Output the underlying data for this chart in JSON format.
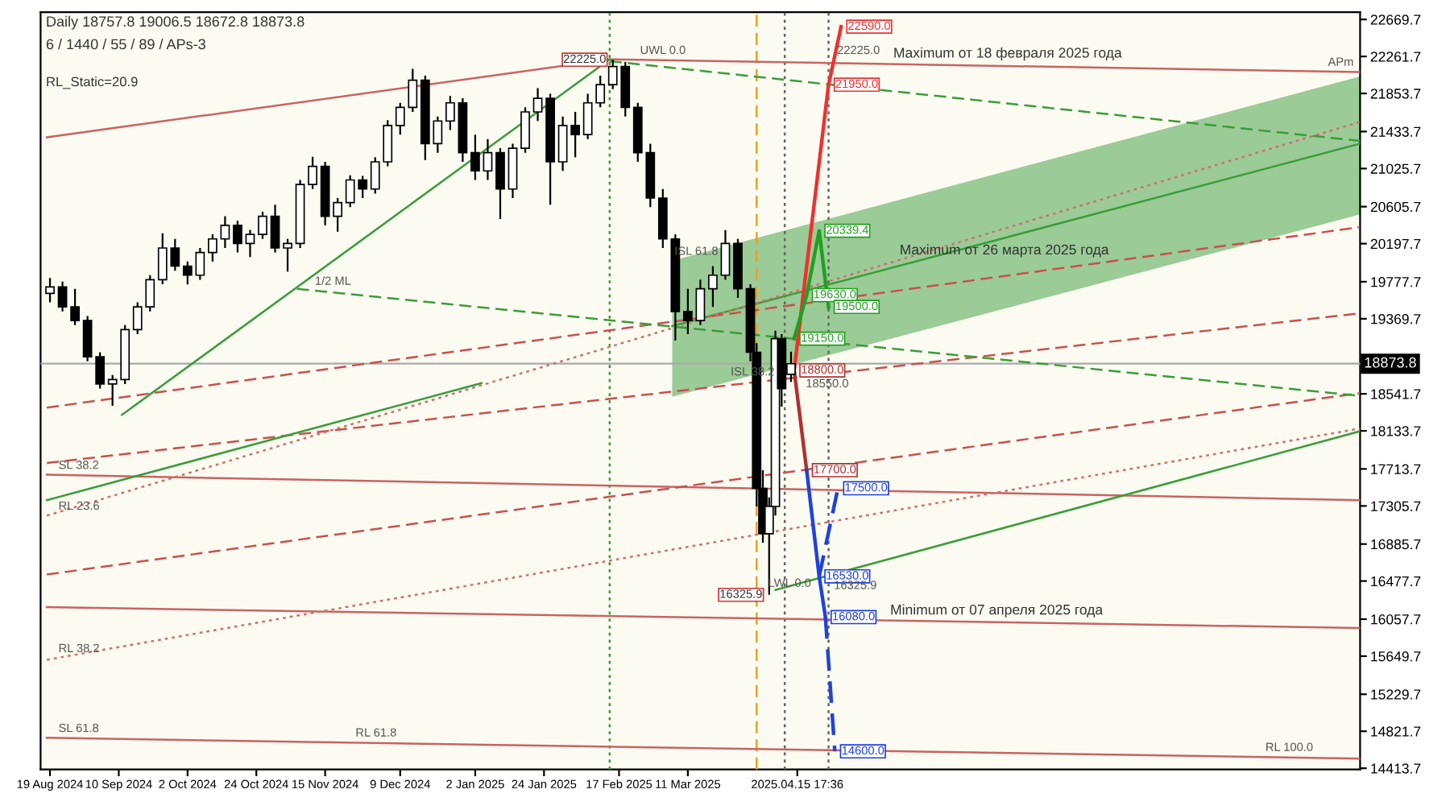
{
  "chart_data": {
    "type": "candlestick",
    "title": "Daily 18757.8 19006.5 18672.8 18873.8",
    "subtitle": "6 / 1440 / 55 / 89 / APs-3",
    "x": [
      "2024-08-19",
      "2024-08-23",
      "2024-08-27",
      "2024-08-31",
      "2024-09-04",
      "2024-09-08",
      "2024-09-12",
      "2024-09-16",
      "2024-09-20",
      "2024-09-24",
      "2024-09-28",
      "2024-10-02",
      "2024-10-06",
      "2024-10-10",
      "2024-10-14",
      "2024-10-18",
      "2024-10-22",
      "2024-10-26",
      "2024-10-30",
      "2024-11-03",
      "2024-11-07",
      "2024-11-11",
      "2024-11-15",
      "2024-11-19",
      "2024-11-23",
      "2024-11-27",
      "2024-12-01",
      "2024-12-05",
      "2024-12-09",
      "2024-12-13",
      "2024-12-17",
      "2024-12-21",
      "2024-12-25",
      "2024-12-29",
      "2025-01-02",
      "2025-01-06",
      "2025-01-10",
      "2025-01-14",
      "2025-01-18",
      "2025-01-22",
      "2025-01-26",
      "2025-01-30",
      "2025-02-03",
      "2025-02-07",
      "2025-02-11",
      "2025-02-15",
      "2025-02-19",
      "2025-02-23",
      "2025-02-27",
      "2025-03-03",
      "2025-03-07",
      "2025-03-11",
      "2025-03-15",
      "2025-03-19",
      "2025-03-23",
      "2025-03-27",
      "2025-03-31",
      "2025-04-02",
      "2025-04-04",
      "2025-04-06",
      "2025-04-08",
      "2025-04-10",
      "2025-04-13"
    ],
    "ohlc": [
      [
        19650,
        19820,
        19550,
        19720
      ],
      [
        19720,
        19780,
        19450,
        19500
      ],
      [
        19500,
        19700,
        19300,
        19350
      ],
      [
        19350,
        19400,
        18900,
        18950
      ],
      [
        18950,
        19000,
        18600,
        18650
      ],
      [
        18650,
        18750,
        18410,
        18700
      ],
      [
        18700,
        19300,
        18650,
        19250
      ],
      [
        19250,
        19550,
        19200,
        19500
      ],
      [
        19500,
        19850,
        19450,
        19800
      ],
      [
        19800,
        20311,
        19750,
        20150
      ],
      [
        20150,
        20250,
        19900,
        19950
      ],
      [
        19950,
        20000,
        19748,
        19850
      ],
      [
        19850,
        20150,
        19800,
        20100
      ],
      [
        20100,
        20300,
        20000,
        20250
      ],
      [
        20250,
        20500,
        20150,
        20400
      ],
      [
        20400,
        20450,
        20100,
        20200
      ],
      [
        20200,
        20350,
        20050,
        20300
      ],
      [
        20300,
        20550,
        20250,
        20500
      ],
      [
        20500,
        20628,
        20100,
        20150
      ],
      [
        20150,
        20250,
        19889,
        20200
      ],
      [
        20200,
        20900,
        20150,
        20850
      ],
      [
        20850,
        21156,
        20800,
        21050
      ],
      [
        21050,
        21100,
        20400,
        20500
      ],
      [
        20500,
        20700,
        20329,
        20650
      ],
      [
        20650,
        20950,
        20600,
        20900
      ],
      [
        20900,
        20945,
        20700,
        20800
      ],
      [
        20800,
        21150,
        20750,
        21100
      ],
      [
        21100,
        21560,
        21050,
        21500
      ],
      [
        21500,
        21750,
        21400,
        21700
      ],
      [
        21700,
        22124,
        21650,
        22000
      ],
      [
        22000,
        22050,
        21120,
        21300
      ],
      [
        21300,
        21600,
        21200,
        21550
      ],
      [
        21550,
        21825,
        21450,
        21750
      ],
      [
        21750,
        21800,
        21100,
        21200
      ],
      [
        21200,
        21400,
        20900,
        21000
      ],
      [
        21000,
        21350,
        20900,
        21200
      ],
      [
        21200,
        21250,
        20470,
        20800
      ],
      [
        20800,
        21300,
        20700,
        21250
      ],
      [
        21250,
        21700,
        21200,
        21650
      ],
      [
        21650,
        21913,
        21550,
        21800
      ],
      [
        21800,
        21850,
        20628,
        21100
      ],
      [
        21100,
        21600,
        21000,
        21500
      ],
      [
        21500,
        21650,
        21150,
        21400
      ],
      [
        21400,
        21850,
        21350,
        21750
      ],
      [
        21750,
        22050,
        21700,
        21950
      ],
      [
        21950,
        22225,
        21900,
        22150
      ],
      [
        22150,
        22200,
        21600,
        21700
      ],
      [
        21700,
        21750,
        21100,
        21200
      ],
      [
        21200,
        21300,
        20600,
        20700
      ],
      [
        20700,
        20800,
        20150,
        20250
      ],
      [
        20250,
        20300,
        19130,
        19450
      ],
      [
        19450,
        19700,
        19200,
        19350
      ],
      [
        19350,
        19800,
        19300,
        19700
      ],
      [
        19700,
        19950,
        19500,
        19850
      ],
      [
        19850,
        20347,
        19800,
        20200
      ],
      [
        20200,
        20250,
        19600,
        19700
      ],
      [
        19700,
        19750,
        18900,
        19000
      ],
      [
        19000,
        19100,
        17300,
        17500
      ],
      [
        17500,
        17700,
        16900,
        17000
      ],
      [
        17000,
        17400,
        16325.9,
        17300
      ],
      [
        17300,
        19238,
        17200,
        19150
      ],
      [
        19150,
        19200,
        18400,
        18600
      ],
      [
        18757.8,
        19006.5,
        18672.8,
        18873.8
      ]
    ],
    "series": [
      {
        "type": "line",
        "color": "#3c9c3c",
        "line_style": "solid",
        "x": [
          "2025-03-06",
          "2025-10-12"
        ],
        "values": [
          19290,
          21300
        ],
        "lower": [
          18510,
          20520
        ],
        "upper": [
          20010,
          22040
        ]
      },
      {
        "type": "line",
        "color": "#c86464",
        "line_style": "solid",
        "x": [
          "2024-08-18",
          "2025-02-14",
          "2025-10-12"
        ],
        "values": [
          21370,
          22230,
          22090
        ]
      },
      {
        "type": "line",
        "color": "#c86464",
        "line_style": "solid",
        "x": [
          "2024-08-18",
          "2025-10-12"
        ],
        "values": [
          17650,
          17370
        ]
      },
      {
        "type": "line",
        "color": "#c86464",
        "line_style": "solid",
        "x": [
          "2024-08-18",
          "2025-10-12"
        ],
        "values": [
          16190,
          15960
        ]
      },
      {
        "type": "line",
        "color": "#c86464",
        "line_style": "solid",
        "x": [
          "2024-08-18",
          "2025-10-12"
        ],
        "values": [
          14750,
          14520
        ]
      },
      {
        "type": "line",
        "color": "#c85050",
        "line_style": "dashed",
        "x": [
          "2024-08-18",
          "2025-10-12"
        ],
        "values": [
          18390,
          20380
        ]
      },
      {
        "type": "line",
        "color": "#c85050",
        "line_style": "dashed",
        "x": [
          "2024-08-18",
          "2025-10-12"
        ],
        "values": [
          17780,
          19430
        ]
      },
      {
        "type": "line",
        "color": "#c85050",
        "line_style": "dashed",
        "x": [
          "2024-08-18",
          "2025-10-12"
        ],
        "values": [
          16550,
          18550
        ]
      },
      {
        "type": "line",
        "color": "#d07070",
        "line_style": "dotted",
        "x": [
          "2024-08-18",
          "2025-10-12"
        ],
        "values": [
          17200,
          21540
        ]
      },
      {
        "type": "line",
        "color": "#d07070",
        "line_style": "dotted",
        "x": [
          "2024-08-18",
          "2025-10-12"
        ],
        "values": [
          15610,
          18160
        ]
      },
      {
        "type": "line",
        "color": "#3c9c3c",
        "line_style": "solid",
        "x": [
          "2024-09-11",
          "2025-02-14"
        ],
        "values": [
          18310,
          22230
        ]
      },
      {
        "type": "line",
        "color": "#3c9c3c",
        "line_style": "solid",
        "x": [
          "2024-08-18",
          "2025-01-04"
        ],
        "values": [
          17370,
          18660
        ]
      },
      {
        "type": "line",
        "color": "#3c9c3c",
        "line_style": "solid",
        "x": [
          "2025-04-08",
          "2025-10-12"
        ],
        "values": [
          16380,
          18130
        ]
      },
      {
        "type": "line",
        "color": "#3c9c3c",
        "line_style": "dashed",
        "x": [
          "2024-11-06",
          "2025-10-12"
        ],
        "values": [
          19700,
          18520
        ]
      },
      {
        "type": "line",
        "color": "#3c9c3c",
        "line_style": "dashed",
        "x": [
          "2025-02-14",
          "2025-10-12"
        ],
        "values": [
          22210,
          21330
        ]
      },
      {
        "type": "line",
        "color": "#b03030",
        "line_style": "solid",
        "x": [
          "2025-04-14",
          "2025-04-18"
        ],
        "values": [
          18800,
          17700
        ],
        "value_labels": [
          "18800.0",
          "17700.0"
        ]
      },
      {
        "type": "line",
        "color": "#f03030",
        "line_style": "solid",
        "x": [
          "2025-04-14",
          "2025-04-25",
          "2025-04-29"
        ],
        "values": [
          18800,
          21950,
          22590
        ],
        "value_labels": [
          null,
          "21950.0",
          "22590.0"
        ]
      },
      {
        "type": "line",
        "color": "#20a020",
        "line_style": "solid",
        "x": [
          "2025-04-14",
          "2025-04-18",
          "2025-04-22",
          "2025-04-25"
        ],
        "values": [
          19150,
          19630,
          20339.4,
          19500
        ],
        "value_labels": [
          "19150.0",
          "19630.0",
          "20339.4",
          "19500.0"
        ]
      },
      {
        "type": "line",
        "color": "#2040e0",
        "line_style": "solid",
        "x": [
          "2025-04-18",
          "2025-04-22",
          "2025-04-24"
        ],
        "values": [
          17700,
          16530,
          16080
        ],
        "value_labels": [
          null,
          "16530.0",
          "16080.0"
        ]
      },
      {
        "type": "line",
        "color": "#2040e0",
        "line_style": "dashed",
        "x": [
          "2025-04-24",
          "2025-04-27"
        ],
        "values": [
          16080,
          14600
        ],
        "value_labels": [
          null,
          "14600.0"
        ]
      },
      {
        "type": "line",
        "color": "#2040e0",
        "line_style": "dashed",
        "x": [
          "2025-04-22",
          "2025-04-28"
        ],
        "values": [
          16530,
          17500
        ],
        "value_labels": [
          null,
          "17500.0"
        ]
      }
    ],
    "ref_lines": [
      {
        "axis": "y",
        "value": 18873.8,
        "label": "18873.8",
        "color": "#aaaaaa",
        "line_style": "solid"
      },
      {
        "axis": "x",
        "value": "2025-02-14",
        "color": "#3c9c3c",
        "line_style": "dotted"
      },
      {
        "axis": "x",
        "value": "2025-04-02",
        "color": "#f0a020",
        "line_style": "dashed"
      },
      {
        "axis": "x",
        "value": "2025-04-11",
        "color": "#666666",
        "line_style": "dotted"
      },
      {
        "axis": "x",
        "value": "2025-04-25",
        "color": "#666666",
        "line_style": "dotted"
      }
    ],
    "annotations": [
      "RL_Static=20.9",
      {
        "text": "22225.0",
        "x": "2025-02-15",
        "y": 22225
      },
      {
        "text": "16325.9",
        "x": "2025-04-06",
        "y": 16325.9
      },
      {
        "text": "22225.0",
        "x": "2025-04-27",
        "y": 22225
      },
      {
        "text": "18550.0",
        "x": "2025-04-17",
        "y": 18550
      },
      {
        "text": "16325.9",
        "x": "2025-04-26",
        "y": 16325.9
      },
      {
        "text": "Maximum от 18 февраля 2025 года",
        "x": "2025-05-15",
        "y": 22180
      },
      {
        "text": "Maximum от 26 марта 2025 года",
        "x": "2025-05-17",
        "y": 20010
      },
      {
        "text": "Minimum от 07 апреля 2025 года",
        "x": "2025-05-14",
        "y": 16040
      },
      {
        "text": "APm",
        "x": "2025-10-01",
        "y": 22095
      },
      {
        "text": "1/2 ML",
        "x": "2024-11-11",
        "y": 19680
      },
      {
        "text": "SL 38.2",
        "x": "2024-08-21",
        "y": 17650
      },
      {
        "text": "SL 61.8",
        "x": "2024-08-21",
        "y": 14750
      },
      {
        "text": "RL 23.6",
        "x": "2024-08-21",
        "y": 17200
      },
      {
        "text": "RL 38.2",
        "x": "2024-08-21",
        "y": 15630
      },
      {
        "text": "RL 61.8",
        "x": "2024-11-24",
        "y": 14700
      },
      {
        "text": "RL 100.0",
        "x": "2025-09-11",
        "y": 14540
      },
      {
        "text": "ISL 61.8",
        "x": "2025-03-06",
        "y": 20010
      },
      {
        "text": "ISL 38.2",
        "x": "2025-03-24",
        "y": 18680
      },
      {
        "text": "UWL 0.0",
        "x": "2025-02-23",
        "y": 22225
      },
      {
        "text": "LWL 0.0",
        "x": "2025-04-05",
        "y": 16350
      }
    ],
    "xlim": [
      "2024-08-16",
      "2025-10-12"
    ],
    "xticks": [
      {
        "value": "2024-08-19",
        "label": "19 Aug 2024"
      },
      {
        "value": "2024-09-10",
        "label": "10 Sep 2024"
      },
      {
        "value": "2024-10-02",
        "label": "2 Oct 2024"
      },
      {
        "value": "2024-10-24",
        "label": "24 Oct 2024"
      },
      {
        "value": "2024-11-15",
        "label": "15 Nov 2024"
      },
      {
        "value": "2024-12-09",
        "label": "9 Dec 2024"
      },
      {
        "value": "2025-01-02",
        "label": "2 Jan 2025"
      },
      {
        "value": "2025-01-24",
        "label": "24 Jan 2025"
      },
      {
        "value": "2025-02-17",
        "label": "17 Feb 2025"
      },
      {
        "value": "2025-03-11",
        "label": "11 Mar 2025"
      },
      {
        "value": "2025-04-15",
        "label": "2025.04.15 17:36"
      }
    ],
    "ylim": [
      14400,
      22750
    ],
    "yticks": [
      14413.7,
      14821.7,
      15229.7,
      15649.7,
      16057.7,
      16477.7,
      16885.7,
      17305.7,
      17713.7,
      18133.7,
      18541.7,
      19369.7,
      19777.7,
      20197.7,
      20605.7,
      21025.7,
      21433.7,
      21853.7,
      22261.7,
      22669.7
    ],
    "grid": false,
    "legend": false
  }
}
